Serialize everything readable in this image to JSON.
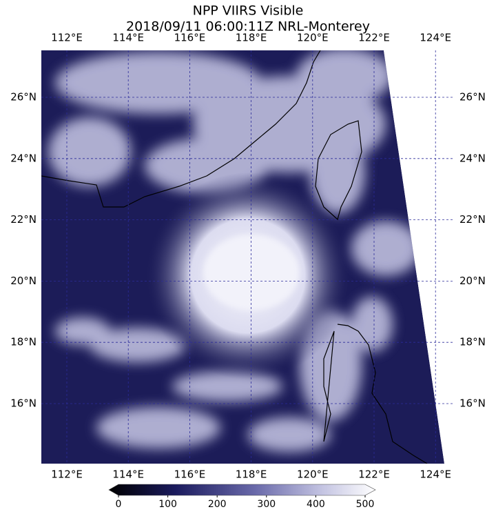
{
  "title": [
    "NPP VIIRS Visible",
    "2018/09/11 06:00:11Z NRL-Monterey"
  ],
  "lon_labels": [
    "112°E",
    "114°E",
    "116°E",
    "118°E",
    "120°E",
    "122°E",
    "124°E"
  ],
  "lat_labels": [
    "26°N",
    "24°N",
    "22°N",
    "20°N",
    "18°N",
    "16°N"
  ],
  "colorbar": {
    "xlim": [
      0,
      500
    ],
    "ticks": [
      0,
      100,
      200,
      300,
      400,
      500
    ]
  }
}
